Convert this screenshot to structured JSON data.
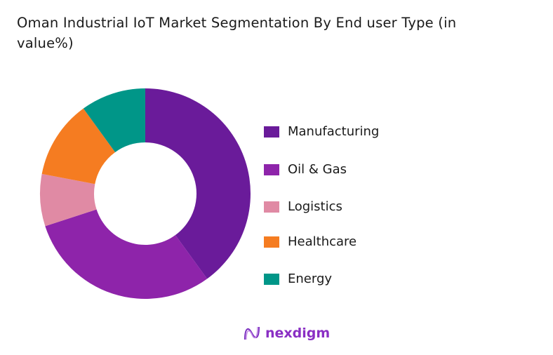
{
  "chart_data": {
    "type": "pie",
    "donut": true,
    "title": "Oman Industrial IoT Market Segmentation By End user Type (in value%)",
    "legend_position": "right",
    "slices": [
      {
        "label": "Manufacturing",
        "value": 40,
        "color": "#6a1b9a"
      },
      {
        "label": "Oil & Gas",
        "value": 30,
        "color": "#8e24aa"
      },
      {
        "label": "Logistics",
        "value": 8,
        "color": "#e08aa4"
      },
      {
        "label": "Healthcare",
        "value": 12,
        "color": "#f57c21"
      },
      {
        "label": "Energy",
        "value": 10,
        "color": "#009688"
      }
    ]
  },
  "brand": {
    "name": "nexdigm"
  }
}
